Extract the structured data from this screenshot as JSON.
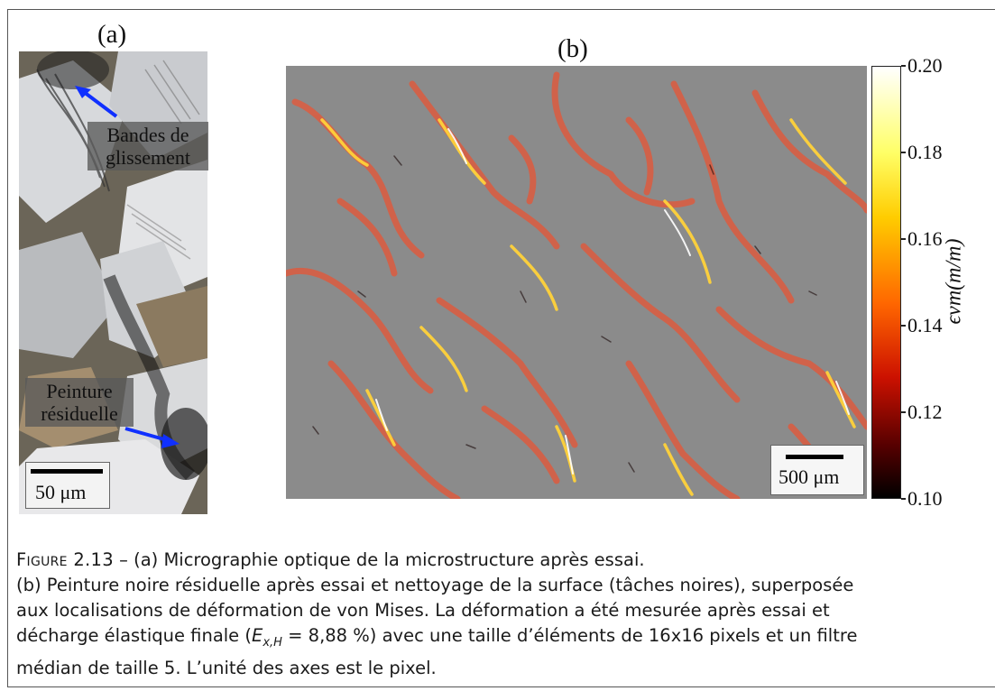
{
  "panel_a": {
    "label": "(a)",
    "annotations": {
      "slip_bands_line1": "Bandes de",
      "slip_bands_line2": "glissement",
      "paint_line1": "Peinture",
      "paint_line2": "résiduelle"
    },
    "scale_text": "50 μm"
  },
  "panel_b": {
    "label": "(b)",
    "scale_text": "500 μm",
    "colorbar": {
      "title": "ϵvm(m/m)",
      "ticks": [
        "0.20",
        "0.18",
        "0.16",
        "0.14",
        "0.12",
        "0.10"
      ],
      "min": 0.1,
      "max": 0.2
    }
  },
  "caption": {
    "figure_label": "Figure 2.13",
    "line1": " – (a) Micrographie optique de la microstructure après essai.",
    "line2": "(b) Peinture noire résiduelle après essai et nettoyage de la surface (tâches noires), superposée",
    "line3": "aux localisations de déformation de von Mises. La déformation a été mesurée après essai et",
    "line4_pre": "décharge élastique finale (",
    "line4_math": "E",
    "line4_sub": "x,H",
    "line4_post": " = 8,88 %) avec une taille d’éléments de 16x16 pixels et un filtre",
    "line5": "médian de taille 5. L’unité des axes est le pixel."
  }
}
